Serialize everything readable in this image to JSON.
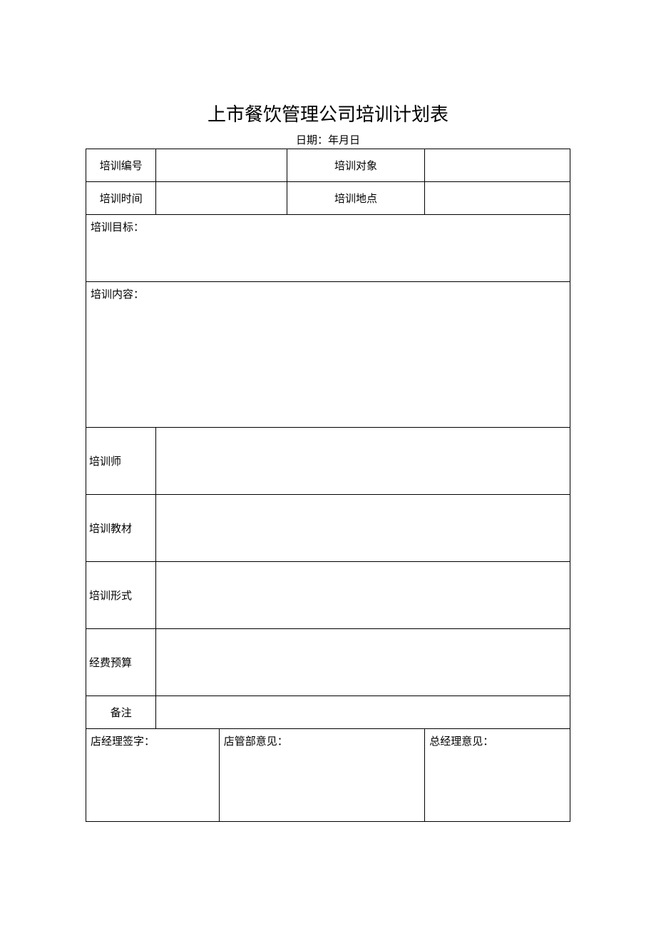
{
  "title": "上市餐饮管理公司培训计划表",
  "date_label": "日期：年月日",
  "row1": {
    "label1": "培训编号",
    "value1": "",
    "label2": "培训对象",
    "value2": ""
  },
  "row2": {
    "label1": "培训时间",
    "value1": "",
    "label2": "培训地点",
    "value2": ""
  },
  "goal_label": "培训目标：",
  "content_label": "培训内容：",
  "trainer_label": "培训师",
  "trainer_value": "",
  "material_label": "培训教材",
  "material_value": "",
  "format_label": "培训形式",
  "format_value": "",
  "budget_label": "经费预算",
  "budget_value": "",
  "remark_label": "备注",
  "remark_value": "",
  "sign1": "店经理签字：",
  "sign2": "店管部意见：",
  "sign3": "总经理意见：",
  "colors": {
    "background": "#ffffff",
    "text": "#000000",
    "border": "#000000"
  },
  "typography": {
    "title_fontsize": 26,
    "body_fontsize": 15,
    "font_family": "SimSun"
  }
}
